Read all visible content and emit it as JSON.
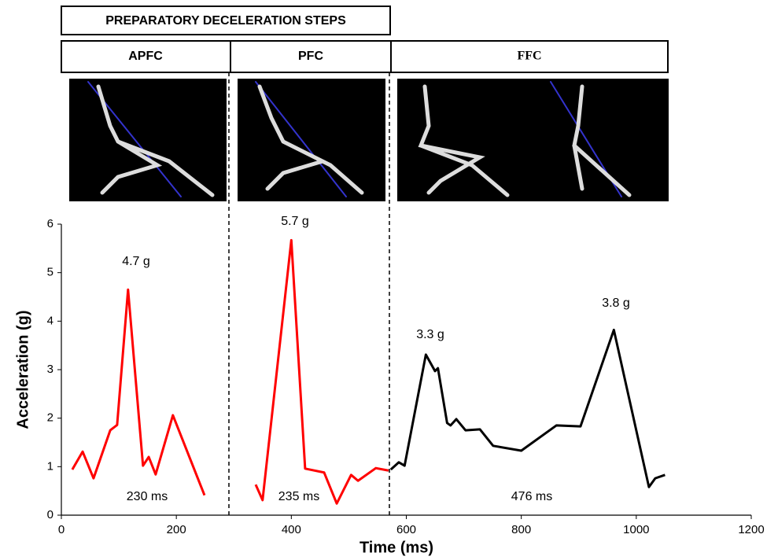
{
  "chart_data": {
    "type": "line",
    "header": "PREPARATORY DECELERATION STEPS",
    "phases": [
      "APFC",
      "PFC",
      "FFC"
    ],
    "xlabel": "Time (ms)",
    "ylabel": "Acceleration (g)",
    "xlim": [
      0,
      1200
    ],
    "xticks": [
      0,
      200,
      400,
      600,
      800,
      1000,
      1200
    ],
    "ylim": [
      0,
      6
    ],
    "yticks": [
      0,
      1,
      2,
      3,
      4,
      5,
      6
    ],
    "series": [
      {
        "color": "#ff0000",
        "x": [
          19,
          37,
          56,
          85,
          97,
          116,
          142,
          152,
          164,
          194,
          249
        ],
        "values": [
          0.94,
          1.31,
          0.76,
          1.75,
          1.86,
          4.65,
          1.02,
          1.2,
          0.84,
          2.06,
          0.41
        ]
      },
      {
        "color": "#ff0000",
        "x": [
          338,
          350,
          400,
          424,
          457,
          479,
          504,
          516,
          547,
          569
        ],
        "values": [
          0.63,
          0.31,
          5.67,
          0.96,
          0.88,
          0.24,
          0.83,
          0.71,
          0.97,
          0.92
        ]
      },
      {
        "color": "#000000",
        "x": [
          573,
          587,
          597,
          634,
          650,
          655,
          671,
          677,
          687,
          703,
          728,
          751,
          800,
          861,
          903,
          961,
          1022,
          1033,
          1050
        ],
        "values": [
          0.94,
          1.09,
          1.02,
          3.31,
          2.97,
          3.03,
          1.9,
          1.85,
          1.98,
          1.75,
          1.77,
          1.43,
          1.33,
          1.85,
          1.83,
          3.82,
          0.58,
          0.76,
          0.83
        ]
      }
    ],
    "annotations": [
      "4.7 g",
      "5.7 g",
      "3.3 g",
      "3.8 g",
      "230 ms",
      "235 ms",
      "476 ms"
    ]
  }
}
